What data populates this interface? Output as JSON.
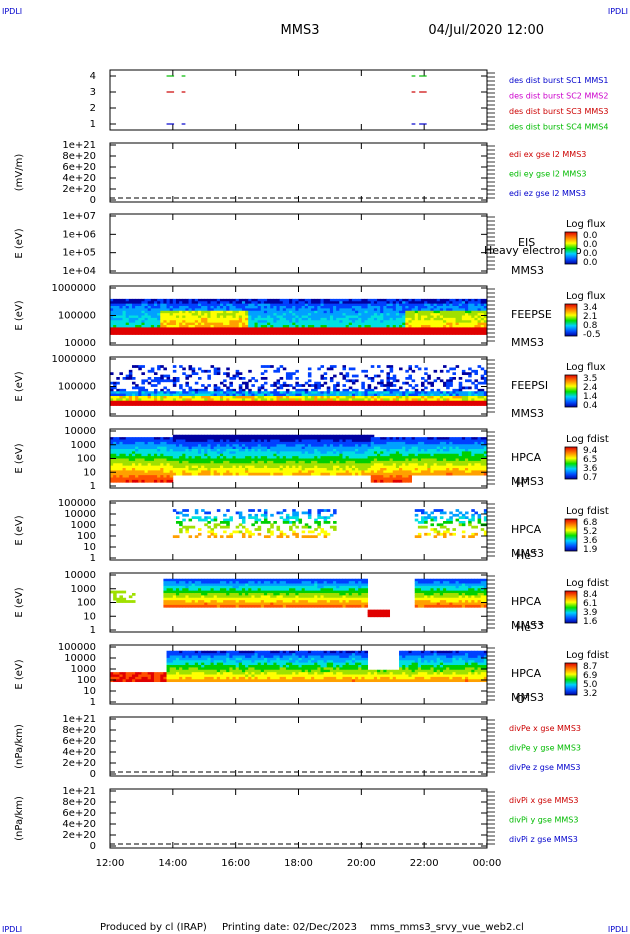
{
  "header": {
    "corner_left": "IPDLI",
    "corner_right": "IPDLI",
    "spacecraft": "MMS3",
    "datetime": "04/Jul/2020 12:00"
  },
  "footer": {
    "produced_by": "Produced by cl (IRAP)",
    "printing_date": "Printing date: 02/Dec/2023",
    "script_name": "mms_mms3_srvy_vue_web2.cl",
    "corner_left": "IPDLI",
    "corner_right": "IPDLI"
  },
  "colors": {
    "blue": "#0000cc",
    "magenta": "#cc00cc",
    "red": "#cc0000",
    "green": "#00bb00"
  },
  "chart_data": {
    "type": "multi-panel time series",
    "x_ticks": [
      "12:00",
      "14:00",
      "16:00",
      "18:00",
      "20:00",
      "22:00",
      "00:00"
    ],
    "panels": [
      {
        "id": "burst",
        "type": "line",
        "ylabel": "",
        "yticks": [
          "4",
          "3",
          "2",
          "1"
        ],
        "legend": [
          {
            "label": "des dist burst SC1 MMS1",
            "color": "#0000cc"
          },
          {
            "label": "des dist burst SC2 MMS2",
            "color": "#cc00cc"
          },
          {
            "label": "des dist burst SC3 MMS3",
            "color": "#cc0000"
          },
          {
            "label": "des dist burst SC4 MMS4",
            "color": "#00bb00"
          }
        ]
      },
      {
        "id": "edi",
        "type": "line",
        "ylabel": "(mV/m)",
        "yticks": [
          "1e+21",
          "8e+20",
          "6e+20",
          "4e+20",
          "2e+20",
          "0"
        ],
        "legend": [
          {
            "label": "edi ex gse l2 MMS3",
            "color": "#cc0000"
          },
          {
            "label": "edi ey gse l2 MMS3",
            "color": "#00bb00"
          },
          {
            "label": "edi ez gse l2 MMS3",
            "color": "#0000cc"
          }
        ]
      },
      {
        "id": "eis",
        "type": "heatmap",
        "ylabel": "E (eV)",
        "yticks": [
          "1e+07",
          "1e+06",
          "1e+05",
          "1e+04"
        ],
        "instrument": [
          "EIS",
          "MMS3"
        ],
        "overlay": "Heavy electron to",
        "colorbar_title": "Log flux",
        "colorbar_ticks": [
          "0.0",
          "0.0",
          "0.0",
          "0.0"
        ]
      },
      {
        "id": "feepse",
        "type": "heatmap",
        "ylabel": "E (eV)",
        "yticks": [
          "1000000",
          "100000",
          "10000"
        ],
        "instrument": [
          "FEEPSE",
          "MMS3"
        ],
        "colorbar_title": "Log flux",
        "colorbar_ticks": [
          "3.4",
          "2.1",
          "0.8",
          "-0.5"
        ]
      },
      {
        "id": "feepsi",
        "type": "heatmap",
        "ylabel": "E (eV)",
        "yticks": [
          "1000000",
          "100000",
          "10000"
        ],
        "instrument": [
          "FEEPSI",
          "MMS3"
        ],
        "colorbar_title": "Log flux",
        "colorbar_ticks": [
          "3.5",
          "2.4",
          "1.4",
          "0.4"
        ]
      },
      {
        "id": "hpca-h",
        "type": "heatmap",
        "ylabel": "E (eV)",
        "yticks": [
          "10000",
          "1000",
          "100",
          "10",
          "1"
        ],
        "instrument": [
          "HPCA",
          "MMS3"
        ],
        "species": "H",
        "species_sup": "+",
        "colorbar_title": "Log fdist",
        "colorbar_ticks": [
          "9.4",
          "6.5",
          "3.6",
          "0.7"
        ]
      },
      {
        "id": "hpca-he",
        "type": "heatmap",
        "ylabel": "E (eV)",
        "yticks": [
          "100000",
          "10000",
          "1000",
          "100",
          "10",
          "1"
        ],
        "instrument": [
          "HPCA",
          "MMS3"
        ],
        "species": "He",
        "species_sup": "+",
        "colorbar_title": "Log fdist",
        "colorbar_ticks": [
          "6.8",
          "5.2",
          "3.6",
          "1.9"
        ]
      },
      {
        "id": "hpca-he2",
        "type": "heatmap",
        "ylabel": "E (eV)",
        "yticks": [
          "10000",
          "1000",
          "100",
          "10",
          "1"
        ],
        "instrument": [
          "HPCA",
          "MMS3"
        ],
        "species": "He",
        "species_sup": "++",
        "colorbar_title": "Log fdist",
        "colorbar_ticks": [
          "8.4",
          "6.1",
          "3.9",
          "1.6"
        ]
      },
      {
        "id": "hpca-o",
        "type": "heatmap",
        "ylabel": "E (eV)",
        "yticks": [
          "100000",
          "10000",
          "1000",
          "100",
          "10",
          "1"
        ],
        "instrument": [
          "HPCA",
          "MMS3"
        ],
        "species": "O",
        "species_sup": "+",
        "colorbar_title": "Log fdist",
        "colorbar_ticks": [
          "8.7",
          "6.9",
          "5.0",
          "3.2"
        ]
      },
      {
        "id": "divpe",
        "type": "line",
        "ylabel": "(nPa/km)",
        "yticks": [
          "1e+21",
          "8e+20",
          "6e+20",
          "4e+20",
          "2e+20",
          "0"
        ],
        "legend": [
          {
            "label": "divPe x gse MMS3",
            "color": "#cc0000"
          },
          {
            "label": "divPe y gse MMS3",
            "color": "#00bb00"
          },
          {
            "label": "divPe z gse MMS3",
            "color": "#0000cc"
          }
        ]
      },
      {
        "id": "divpi",
        "type": "line",
        "ylabel": "(nPa/km)",
        "yticks": [
          "1e+21",
          "8e+20",
          "6e+20",
          "4e+20",
          "2e+20",
          "0"
        ],
        "legend": [
          {
            "label": "divPi x gse MMS3",
            "color": "#cc0000"
          },
          {
            "label": "divPi y gse MMS3",
            "color": "#00bb00"
          },
          {
            "label": "divPi z gse MMS3",
            "color": "#0000cc"
          }
        ]
      }
    ]
  }
}
